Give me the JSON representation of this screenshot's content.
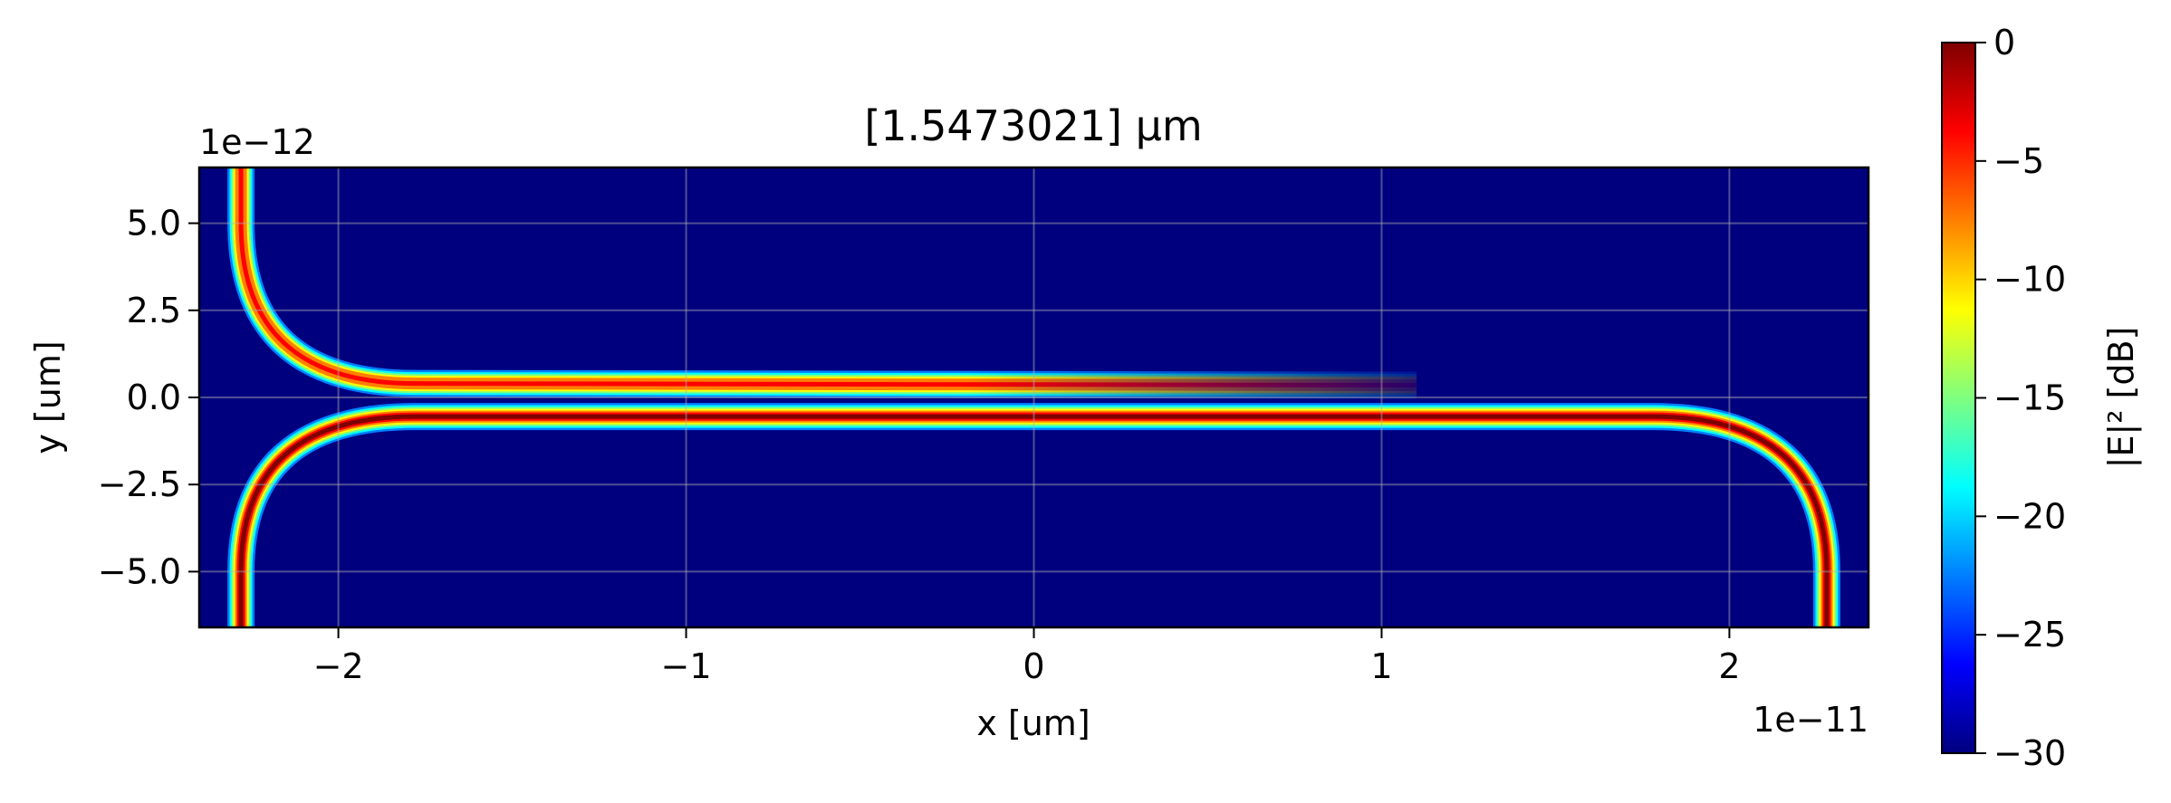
{
  "chart_data": {
    "type": "heatmap",
    "title": "[1.5473021] μm",
    "xlabel": "x [um]",
    "ylabel": "y [um]",
    "x_offset_text": "1e−11",
    "y_offset_text": "1e−12",
    "xlim": [
      -2.4,
      2.4
    ],
    "ylim": [
      -6.6,
      6.6
    ],
    "x_ticks": [
      -2,
      -1,
      0,
      1,
      2
    ],
    "x_tick_labels": [
      "−2",
      "−1",
      "0",
      "1",
      "2"
    ],
    "y_ticks": [
      5.0,
      2.5,
      0.0,
      -2.5,
      -5.0
    ],
    "y_tick_labels": [
      "5.0",
      "2.5",
      "0.0",
      "−2.5",
      "−5.0"
    ],
    "grid": true,
    "colormap": "jet",
    "colorbar": {
      "label": "|E|² [dB]",
      "range": [
        -30,
        0
      ],
      "ticks": [
        0,
        -5,
        -10,
        -15,
        -20,
        -25,
        -30
      ],
      "tick_labels": [
        "0",
        "−5",
        "−10",
        "−15",
        "−20",
        "−25",
        "−30"
      ]
    },
    "background_value_db": -30,
    "waveguides": [
      {
        "path": [
          [
            -2.28,
            6.6
          ],
          [
            -2.28,
            5.0
          ],
          [
            -1.78,
            0.4
          ],
          [
            1.1,
            0.35
          ]
        ],
        "peak_db": -3,
        "fade_start_x": -0.2,
        "fade_end_x": 1.35
      },
      {
        "path": [
          [
            -2.28,
            -6.6
          ],
          [
            -2.28,
            -5.0
          ],
          [
            -1.78,
            -0.55
          ],
          [
            1.78,
            -0.55
          ],
          [
            2.28,
            -5.0
          ],
          [
            2.28,
            -6.6
          ]
        ],
        "peak_db": 0
      }
    ]
  },
  "colors": {
    "background": "#00007f",
    "jet_stops": [
      "#00007f",
      "#0000ff",
      "#007fff",
      "#00ffff",
      "#7fff7f",
      "#ffff00",
      "#ff7f00",
      "#ff0000",
      "#7f0000"
    ]
  }
}
